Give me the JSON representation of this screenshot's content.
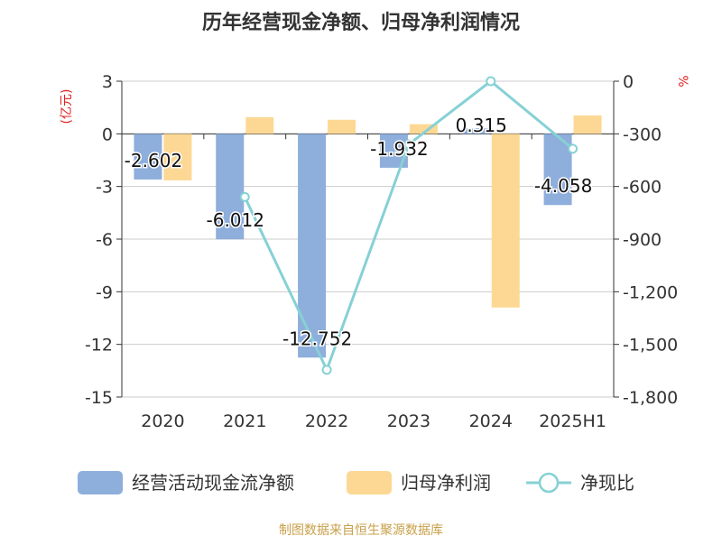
{
  "chart_data": {
    "type": "bar",
    "title": "历年经营现金净额、归母净利润情况",
    "source": "制图数据来自恒生聚源数据库",
    "categories": [
      "2020",
      "2021",
      "2022",
      "2023",
      "2024",
      "2025H1"
    ],
    "y_left": {
      "unit": "(亿元)",
      "min": -15,
      "max": 3,
      "ticks": [
        3,
        0,
        -3,
        -6,
        -9,
        -12,
        -15
      ]
    },
    "y_right": {
      "unit": "%",
      "min": -1800,
      "max": 0,
      "ticks": [
        "0",
        "-300",
        "-600",
        "-900",
        "-1,200",
        "-1,500",
        "-1,800"
      ],
      "tick_values": [
        0,
        -300,
        -600,
        -900,
        -1200,
        -1500,
        -1800
      ]
    },
    "series": [
      {
        "name": "经营活动现金流净额",
        "type": "bar",
        "axis": "left",
        "color": "#8eaedb",
        "values": [
          -2.602,
          -6.012,
          -12.752,
          -1.932,
          0.315,
          -4.058
        ],
        "labels": [
          "-2.602",
          "-6.012",
          "-12.752",
          "-1.932",
          "0.315",
          "-4.058"
        ]
      },
      {
        "name": "归母净利润",
        "type": "bar",
        "axis": "left",
        "color": "#fdd894",
        "values": [
          -2.65,
          0.95,
          0.8,
          0.55,
          -9.9,
          1.05
        ]
      },
      {
        "name": "净现比",
        "type": "line",
        "axis": "right",
        "color": "#86d1d5",
        "values": [
          null,
          -660,
          -1645,
          -360,
          0,
          -385
        ]
      }
    ],
    "grid": true,
    "legend_position": "bottom"
  }
}
